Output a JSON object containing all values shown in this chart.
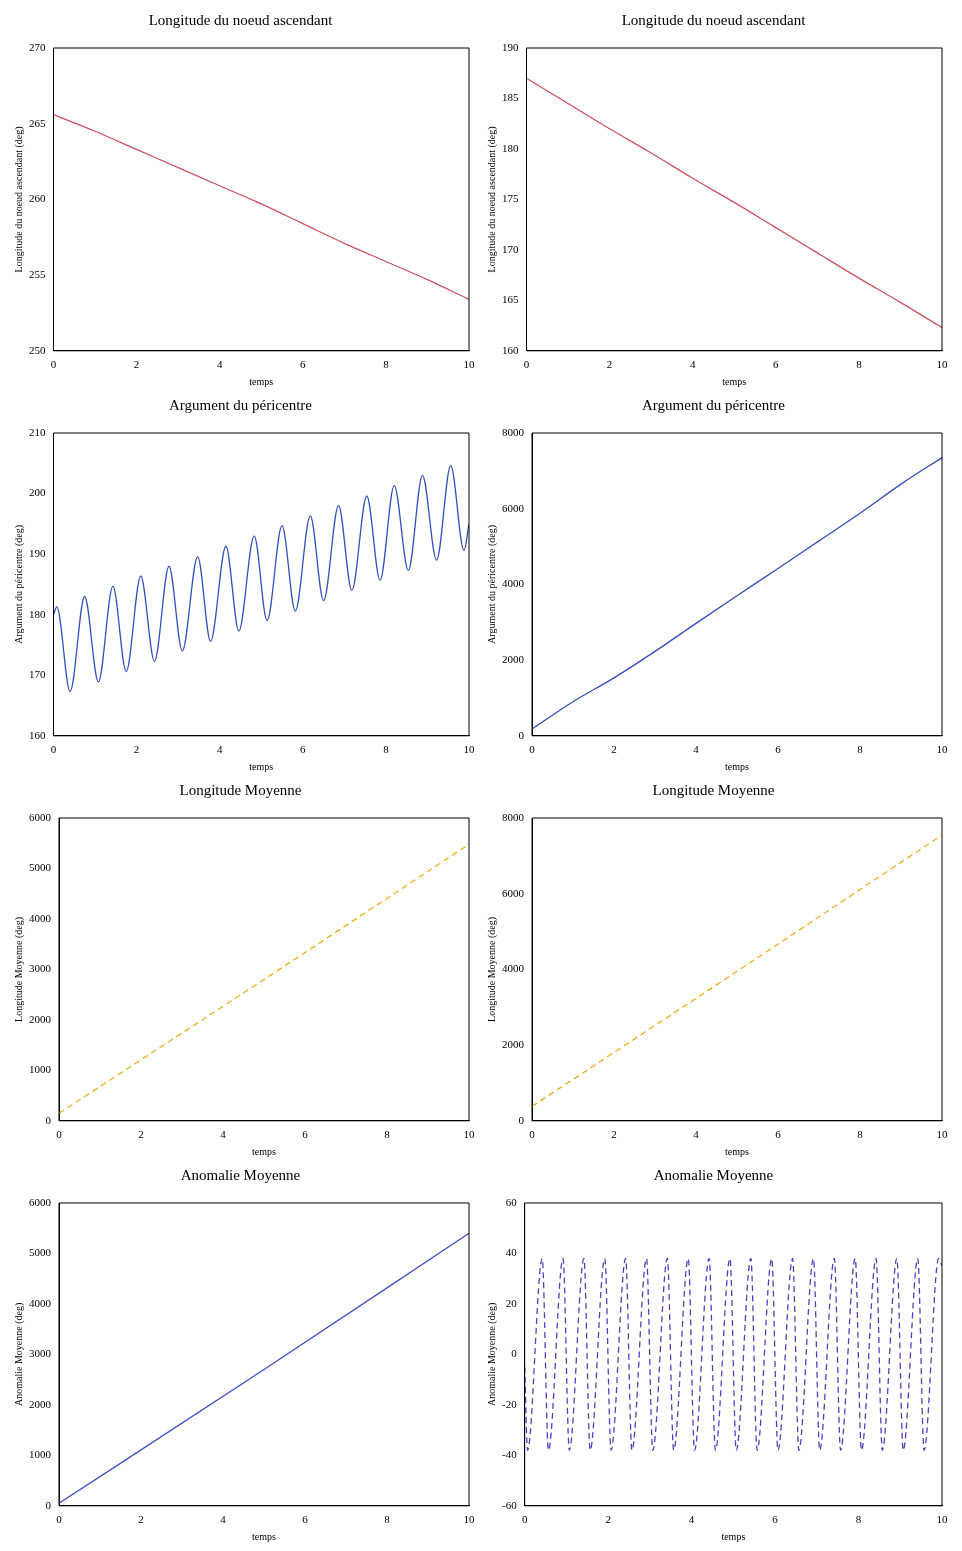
{
  "chart_data": [
    {
      "type": "line",
      "title": "Longitude du noeud ascendant",
      "xlabel": "temps",
      "ylabel": "Longitude du noeud ascendant (deg)",
      "xlim": [
        0,
        10
      ],
      "xticks": [
        0,
        2,
        4,
        6,
        8,
        10
      ],
      "ylim": [
        250,
        270
      ],
      "yticks": [
        250,
        255,
        260,
        265,
        270
      ],
      "line_style": "solid",
      "series": [
        {
          "color": "#d05060",
          "x": [
            0,
            1,
            2,
            3,
            4,
            5,
            6,
            7,
            8,
            9,
            10
          ],
          "values": [
            265.6,
            264.5,
            263.3,
            262.1,
            260.9,
            259.7,
            258.4,
            257.1,
            255.9,
            254.7,
            253.4
          ]
        }
      ]
    },
    {
      "type": "line",
      "title": "Longitude du noeud ascendant",
      "xlabel": "temps",
      "ylabel": "Longitude du noeud ascendant (deg)",
      "xlim": [
        0,
        10
      ],
      "xticks": [
        0,
        2,
        4,
        6,
        8,
        10
      ],
      "ylim": [
        160,
        190
      ],
      "yticks": [
        160,
        165,
        170,
        175,
        180,
        185,
        190
      ],
      "line_style": "solid",
      "series": [
        {
          "color": "#d05060",
          "x": [
            0,
            1,
            2,
            3,
            4,
            5,
            6,
            7,
            8,
            9,
            10
          ],
          "values": [
            187,
            184.5,
            182,
            179.6,
            177.1,
            174.7,
            172.2,
            169.7,
            167.2,
            164.8,
            162.3
          ]
        }
      ]
    },
    {
      "type": "line",
      "title": "Argument du péricentre",
      "xlabel": "temps",
      "ylabel": "Argument du péricentre (deg)",
      "xlim": [
        0,
        10
      ],
      "xticks": [
        0,
        2,
        4,
        6,
        8,
        10
      ],
      "ylim": [
        160,
        210
      ],
      "yticks": [
        160,
        170,
        180,
        190,
        200,
        210
      ],
      "line_style": "solid",
      "series": [
        {
          "color": "#3050c0",
          "x": [
            0,
            0.08,
            0.4,
            0.75,
            1.08,
            1.43,
            1.75,
            2.1,
            2.43,
            2.78,
            3.1,
            3.47,
            3.78,
            4.15,
            4.46,
            4.83,
            5.14,
            5.5,
            5.82,
            6.18,
            6.5,
            6.86,
            7.18,
            7.54,
            7.86,
            8.2,
            8.54,
            8.88,
            9.22,
            9.56,
            9.88,
            10
          ],
          "values": [
            180,
            181.3,
            167.3,
            183,
            168.9,
            184.7,
            170.6,
            186.4,
            172.3,
            188,
            174,
            189.6,
            175.6,
            191.3,
            177.3,
            193,
            179,
            194.7,
            180.6,
            196.3,
            182.3,
            198,
            184,
            199.6,
            185.7,
            201.3,
            187.3,
            203,
            189,
            204.6,
            190.6,
            195
          ]
        }
      ]
    },
    {
      "type": "line",
      "title": "Argument du péricentre",
      "xlabel": "temps",
      "ylabel": "Argument du péricentre (deg)",
      "xlim": [
        0,
        10
      ],
      "xticks": [
        0,
        2,
        4,
        6,
        8,
        10
      ],
      "ylim": [
        0,
        8000
      ],
      "yticks": [
        0,
        2000,
        4000,
        6000,
        8000
      ],
      "line_style": "solid",
      "series": [
        {
          "color": "#3050c0",
          "x": [
            0,
            1,
            2,
            3,
            4,
            5,
            6,
            7,
            8,
            9,
            10
          ],
          "values": [
            180,
            900,
            1530,
            2230,
            2970,
            3700,
            4420,
            5150,
            5880,
            6650,
            7350
          ]
        }
      ]
    },
    {
      "type": "line",
      "title": "Longitude Moyenne",
      "xlabel": "temps",
      "ylabel": "Longitude Moyenne (deg)",
      "xlim": [
        0,
        10
      ],
      "xticks": [
        0,
        2,
        4,
        6,
        8,
        10
      ],
      "ylim": [
        0,
        6000
      ],
      "yticks": [
        0,
        1000,
        2000,
        3000,
        4000,
        5000,
        6000
      ],
      "line_style": "dashed",
      "series": [
        {
          "color": "#e8b020",
          "x": [
            0,
            5,
            10
          ],
          "values": [
            150,
            2800,
            5480
          ]
        }
      ]
    },
    {
      "type": "line",
      "title": "Longitude Moyenne",
      "xlabel": "temps",
      "ylabel": "Longitude Moyenne (deg)",
      "xlim": [
        0,
        10
      ],
      "xticks": [
        0,
        2,
        4,
        6,
        8,
        10
      ],
      "ylim": [
        0,
        8000
      ],
      "yticks": [
        0,
        2000,
        4000,
        6000,
        8000
      ],
      "line_style": "dashed",
      "series": [
        {
          "color": "#e8b020",
          "x": [
            0,
            5,
            10
          ],
          "values": [
            380,
            3950,
            7550
          ]
        }
      ]
    },
    {
      "type": "line",
      "title": "Anomalie Moyenne",
      "xlabel": "temps",
      "ylabel": "Anomalie Moyenne (deg)",
      "xlim": [
        0,
        10
      ],
      "xticks": [
        0,
        2,
        4,
        6,
        8,
        10
      ],
      "ylim": [
        0,
        6000
      ],
      "yticks": [
        0,
        1000,
        2000,
        3000,
        4000,
        5000,
        6000
      ],
      "line_style": "solid",
      "series": [
        {
          "color": "#4050c8",
          "x": [
            0,
            5,
            10
          ],
          "values": [
            50,
            2700,
            5400
          ]
        }
      ]
    },
    {
      "type": "line",
      "title": "Anomalie Moyenne",
      "xlabel": "temps",
      "ylabel": "Anomalie Moyenne (deg)",
      "xlim": [
        0,
        10
      ],
      "xticks": [
        0,
        2,
        4,
        6,
        8,
        10
      ],
      "ylim": [
        -60,
        60
      ],
      "yticks": [
        -60,
        -40,
        -20,
        0,
        20,
        40,
        60
      ],
      "line_style": "dashed",
      "series": [
        {
          "color": "#5040c0",
          "x": [
            0,
            0.07,
            0.42,
            0.57,
            0.92,
            1.07,
            1.42,
            1.57,
            1.92,
            2.07,
            2.42,
            2.57,
            2.92,
            3.07,
            3.42,
            3.57,
            3.92,
            4.07,
            4.42,
            4.57,
            4.92,
            5.07,
            5.42,
            5.57,
            5.92,
            6.07,
            6.42,
            6.57,
            6.92,
            7.07,
            7.42,
            7.57,
            7.92,
            8.07,
            8.42,
            8.57,
            8.92,
            9.07,
            9.42,
            9.57,
            9.92,
            10
          ],
          "values": [
            -5,
            -38,
            38,
            -38,
            38,
            -38,
            38,
            -38,
            38,
            -38,
            38,
            -38,
            38,
            -38,
            38,
            -38,
            38,
            -38,
            38,
            -38,
            38,
            -38,
            38,
            -38,
            38,
            -38,
            38,
            -38,
            38,
            -38,
            38,
            -38,
            38,
            -38,
            38,
            -38,
            38,
            -38,
            38,
            -38,
            38,
            35
          ]
        }
      ]
    }
  ]
}
